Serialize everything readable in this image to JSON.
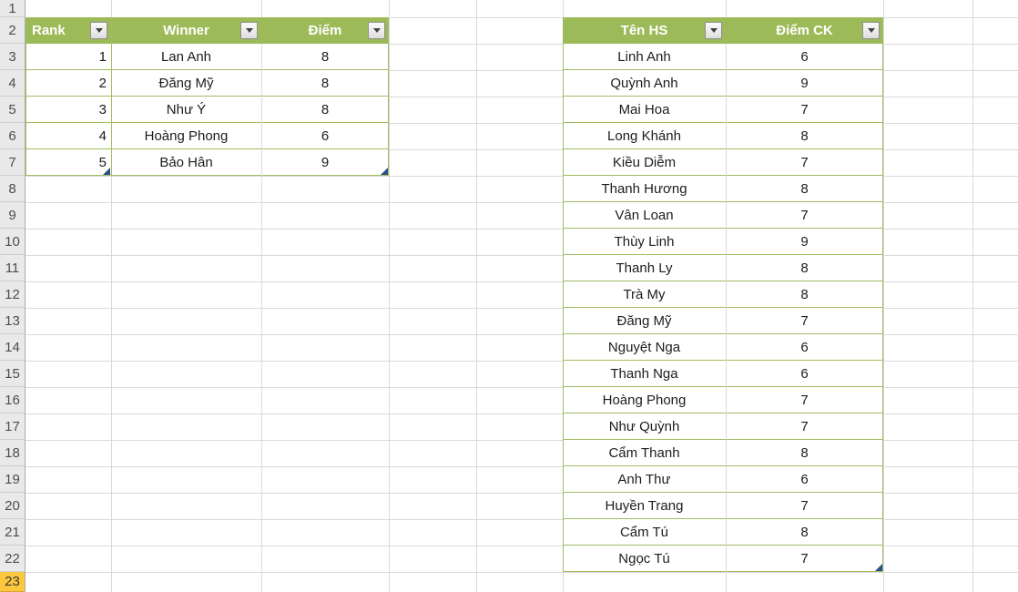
{
  "colors": {
    "table_header_green": "#9CBA57",
    "table_border_green": "#A0BD61",
    "gridline_gray": "#D9D9D9",
    "row_header_gray": "#E9E9E9",
    "active_row_header_amber": "#FCC63D",
    "resize_handle_blue": "#2B4E8C"
  },
  "row_headers": [
    "1",
    "2",
    "3",
    "4",
    "5",
    "6",
    "7",
    "8",
    "9",
    "10",
    "11",
    "12",
    "13",
    "14",
    "15",
    "16",
    "17",
    "18",
    "19",
    "20",
    "21",
    "22",
    "23"
  ],
  "active_row_header": "23",
  "left_table": {
    "columns": [
      "Rank",
      "Winner",
      "Điểm"
    ],
    "rows": [
      [
        "1",
        "Lan Anh",
        "8"
      ],
      [
        "2",
        "Đăng Mỹ",
        "8"
      ],
      [
        "3",
        "Như Ý",
        "8"
      ],
      [
        "4",
        "Hoàng Phong",
        "6"
      ],
      [
        "5",
        "Bảo Hân",
        "9"
      ]
    ]
  },
  "right_table": {
    "columns": [
      "Tên HS",
      "Điểm CK"
    ],
    "rows": [
      [
        "Linh Anh",
        "6"
      ],
      [
        "Quỳnh Anh",
        "9"
      ],
      [
        "Mai Hoa",
        "7"
      ],
      [
        "Long Khánh",
        "8"
      ],
      [
        "Kiều Diễm",
        "7"
      ],
      [
        "Thanh Hương",
        "8"
      ],
      [
        "Vân Loan",
        "7"
      ],
      [
        "Thùy Linh",
        "9"
      ],
      [
        "Thanh Ly",
        "8"
      ],
      [
        "Trà My",
        "8"
      ],
      [
        "Đăng Mỹ",
        "7"
      ],
      [
        "Nguyệt Nga",
        "6"
      ],
      [
        "Thanh Nga",
        "6"
      ],
      [
        "Hoàng Phong",
        "7"
      ],
      [
        "Như Quỳnh",
        "7"
      ],
      [
        "Cẩm Thanh",
        "8"
      ],
      [
        "Anh Thư",
        "6"
      ],
      [
        "Huyền Trang",
        "7"
      ],
      [
        "Cẩm Tú",
        "8"
      ],
      [
        "Ngọc Tú",
        "7"
      ]
    ]
  }
}
